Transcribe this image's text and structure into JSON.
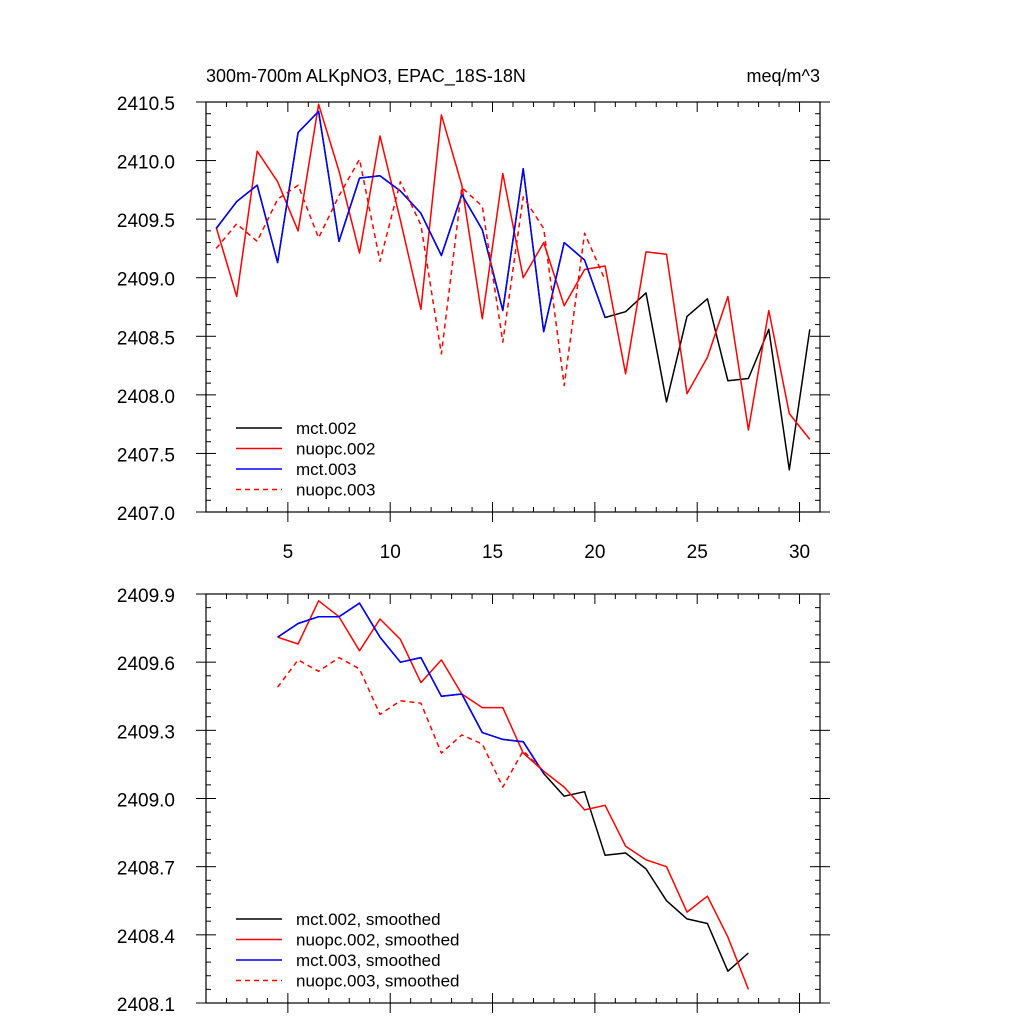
{
  "chart_data": [
    {
      "type": "line",
      "title": "300m-700m ALKpNO3, EPAC_18S-18N",
      "units": "meq/m^3",
      "xlim": [
        1,
        31
      ],
      "ylim": [
        2407.0,
        2410.5
      ],
      "xticks": [
        5,
        10,
        15,
        20,
        25,
        30
      ],
      "xtick_labels": [
        "5",
        "10",
        "15",
        "20",
        "25",
        "30"
      ],
      "yticks": [
        2407.0,
        2407.5,
        2408.0,
        2408.5,
        2409.0,
        2409.5,
        2410.0,
        2410.5
      ],
      "ytick_labels": [
        "2407.0",
        "2407.5",
        "2408.0",
        "2408.5",
        "2409.0",
        "2409.5",
        "2410.0",
        "2410.5"
      ],
      "legend_position": "bottom-left",
      "series": [
        {
          "name": "mct.002",
          "color": "#000000",
          "dash": "solid",
          "x": [
            1.5,
            2.5,
            3.5,
            4.5,
            5.5,
            6.5,
            7.5,
            8.5,
            9.5,
            10.5,
            11.5,
            12.5,
            13.5,
            14.5,
            15.5,
            16.5,
            17.5,
            18.5,
            19.5,
            20.5,
            21.5,
            22.5,
            23.5,
            24.5,
            25.5,
            26.5,
            27.5,
            28.5,
            29.5,
            30.5
          ],
          "values": [
            2409.42,
            2409.65,
            2409.79,
            2409.13,
            2410.24,
            2410.42,
            2409.31,
            2409.85,
            2409.87,
            2409.74,
            2409.55,
            2409.19,
            2409.71,
            2409.41,
            2408.72,
            2409.93,
            2408.54,
            2409.3,
            2409.15,
            2408.66,
            2408.71,
            2408.87,
            2407.94,
            2408.67,
            2408.82,
            2408.12,
            2408.14,
            2408.56,
            2407.36,
            2408.56
          ]
        },
        {
          "name": "nuopc.002",
          "color": "#ff0000",
          "dash": "solid",
          "x": [
            1.5,
            2.5,
            3.5,
            4.5,
            5.5,
            6.5,
            7.5,
            8.5,
            9.5,
            10.5,
            11.5,
            12.5,
            13.5,
            14.5,
            15.5,
            16.5,
            17.5,
            18.5,
            19.5,
            20.5,
            21.5,
            22.5,
            23.5,
            24.5,
            25.5,
            26.5,
            27.5,
            28.5,
            29.5,
            30.5
          ],
          "values": [
            2409.43,
            2408.84,
            2410.08,
            2409.82,
            2409.4,
            2410.48,
            2409.91,
            2409.21,
            2410.21,
            2409.49,
            2408.73,
            2410.39,
            2409.79,
            2408.65,
            2409.89,
            2409.0,
            2409.3,
            2408.76,
            2409.07,
            2409.1,
            2408.18,
            2409.22,
            2409.2,
            2408.01,
            2408.32,
            2408.84,
            2407.7,
            2408.72,
            2407.84,
            2407.62
          ]
        },
        {
          "name": "mct.003",
          "color": "#0000ff",
          "dash": "solid",
          "x": [
            1.5,
            2.5,
            3.5,
            4.5,
            5.5,
            6.5,
            7.5,
            8.5,
            9.5,
            10.5,
            11.5,
            12.5,
            13.5,
            14.5,
            15.5,
            16.5,
            17.5,
            18.5,
            19.5,
            20.5
          ],
          "values": [
            2409.42,
            2409.65,
            2409.79,
            2409.13,
            2410.24,
            2410.42,
            2409.31,
            2409.85,
            2409.87,
            2409.74,
            2409.55,
            2409.19,
            2409.71,
            2409.41,
            2408.72,
            2409.93,
            2408.54,
            2409.3,
            2409.15,
            2408.66
          ]
        },
        {
          "name": "nuopc.003",
          "color": "#ff0000",
          "dash": "dashed",
          "x": [
            1.5,
            2.5,
            3.5,
            4.5,
            5.5,
            6.5,
            7.5,
            8.5,
            9.5,
            10.5,
            11.5,
            12.5,
            13.5,
            14.5,
            15.5,
            16.5,
            17.5,
            18.5,
            19.5,
            20.5
          ],
          "values": [
            2409.25,
            2409.46,
            2409.31,
            2409.67,
            2409.79,
            2409.34,
            2409.7,
            2410.01,
            2409.14,
            2409.82,
            2409.45,
            2408.35,
            2409.77,
            2409.61,
            2408.45,
            2409.69,
            2409.42,
            2408.08,
            2409.38,
            2408.98
          ]
        }
      ]
    },
    {
      "type": "line",
      "title": "",
      "units": "",
      "xlim": [
        1,
        31
      ],
      "ylim": [
        2408.1,
        2409.9
      ],
      "xticks": [
        5,
        10,
        15,
        20,
        25,
        30
      ],
      "xtick_labels": [
        "",
        "",
        "",
        "",
        "",
        ""
      ],
      "yticks": [
        2408.1,
        2408.4,
        2408.7,
        2409.0,
        2409.3,
        2409.6,
        2409.9
      ],
      "ytick_labels": [
        "2408.1",
        "2408.4",
        "2408.7",
        "2409.0",
        "2409.3",
        "2409.6",
        "2409.9"
      ],
      "legend_position": "bottom-left",
      "series": [
        {
          "name": "mct.002, smoothed",
          "color": "#000000",
          "dash": "solid",
          "x": [
            4.5,
            5.5,
            6.5,
            7.5,
            8.5,
            9.5,
            10.5,
            11.5,
            12.5,
            13.5,
            14.5,
            15.5,
            16.5,
            17.5,
            18.5,
            19.5,
            20.5,
            21.5,
            22.5,
            23.5,
            24.5,
            25.5,
            26.5,
            27.5
          ],
          "values": [
            2409.71,
            2409.77,
            2409.8,
            2409.8,
            2409.86,
            2409.71,
            2409.6,
            2409.62,
            2409.45,
            2409.46,
            2409.29,
            2409.26,
            2409.25,
            2409.11,
            2409.01,
            2409.03,
            2408.75,
            2408.76,
            2408.69,
            2408.55,
            2408.47,
            2408.45,
            2408.24,
            2408.32
          ]
        },
        {
          "name": "nuopc.002, smoothed",
          "color": "#ff0000",
          "dash": "solid",
          "x": [
            4.5,
            5.5,
            6.5,
            7.5,
            8.5,
            9.5,
            10.5,
            11.5,
            12.5,
            13.5,
            14.5,
            15.5,
            16.5,
            17.5,
            18.5,
            19.5,
            20.5,
            21.5,
            22.5,
            23.5,
            24.5,
            25.5,
            26.5,
            27.5
          ],
          "values": [
            2409.71,
            2409.68,
            2409.87,
            2409.8,
            2409.65,
            2409.79,
            2409.7,
            2409.51,
            2409.61,
            2409.46,
            2409.4,
            2409.4,
            2409.2,
            2409.12,
            2409.05,
            2408.95,
            2408.97,
            2408.79,
            2408.73,
            2408.7,
            2408.5,
            2408.57,
            2408.39,
            2408.16
          ]
        },
        {
          "name": "mct.003, smoothed",
          "color": "#0000ff",
          "dash": "solid",
          "x": [
            4.5,
            5.5,
            6.5,
            7.5,
            8.5,
            9.5,
            10.5,
            11.5,
            12.5,
            13.5,
            14.5,
            15.5,
            16.5,
            17.5
          ],
          "values": [
            2409.71,
            2409.77,
            2409.8,
            2409.8,
            2409.86,
            2409.71,
            2409.6,
            2409.62,
            2409.45,
            2409.46,
            2409.29,
            2409.26,
            2409.25,
            2409.11
          ]
        },
        {
          "name": "nuopc.003, smoothed",
          "color": "#ff0000",
          "dash": "dashed",
          "x": [
            4.5,
            5.5,
            6.5,
            7.5,
            8.5,
            9.5,
            10.5,
            11.5,
            12.5,
            13.5,
            14.5,
            15.5,
            16.5,
            17.5
          ],
          "values": [
            2409.49,
            2409.61,
            2409.56,
            2409.62,
            2409.57,
            2409.37,
            2409.43,
            2409.42,
            2409.2,
            2409.28,
            2409.24,
            2409.05,
            2409.21,
            2409.12
          ]
        }
      ]
    }
  ]
}
